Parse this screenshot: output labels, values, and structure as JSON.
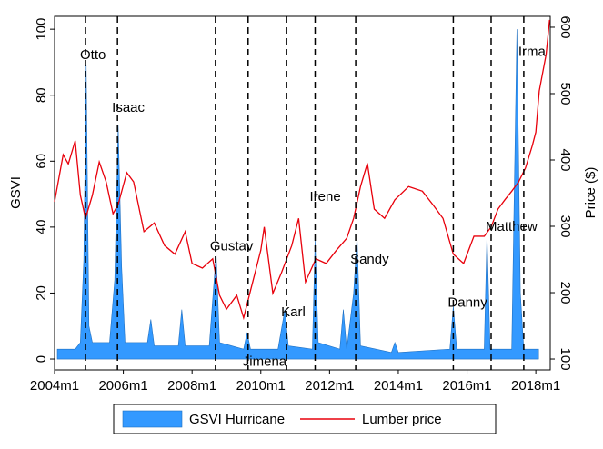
{
  "chart_data": {
    "type": "area-line",
    "y_label": "GSVI",
    "y2_label": "Price ($)",
    "xlim": [
      2004,
      2018.42
    ],
    "xticks": [
      {
        "value": 2004,
        "label": "2004m1"
      },
      {
        "value": 2006,
        "label": "2006m1"
      },
      {
        "value": 2008,
        "label": "2008m1"
      },
      {
        "value": 2010,
        "label": "2010m1"
      },
      {
        "value": 2012,
        "label": "2012m1"
      },
      {
        "value": 2014,
        "label": "2014m1"
      },
      {
        "value": 2016,
        "label": "2016m1"
      },
      {
        "value": 2018,
        "label": "2018m1"
      }
    ],
    "ylim": [
      -3.3,
      103.9
    ],
    "yticks": [
      0,
      20,
      40,
      60,
      80,
      100
    ],
    "y2lim": [
      83.6,
      616.4
    ],
    "y2ticks": [
      100,
      200,
      300,
      400,
      500,
      600
    ],
    "legend": "bottom",
    "series": [
      {
        "name": "GSVI Hurricane",
        "kind": "area",
        "color": "#3399ff",
        "axis": "y",
        "x": [
          2004.08,
          2004.6,
          2004.75,
          2004.85,
          2004.92,
          2005.0,
          2005.1,
          2005.6,
          2005.75,
          2005.85,
          2005.95,
          2006.05,
          2006.7,
          2006.8,
          2006.9,
          2007.6,
          2007.7,
          2007.8,
          2008.5,
          2008.6,
          2008.7,
          2008.8,
          2009.5,
          2009.6,
          2009.7,
          2010.5,
          2010.7,
          2010.8,
          2011.5,
          2011.58,
          2011.67,
          2012.3,
          2012.4,
          2012.5,
          2012.7,
          2012.8,
          2012.9,
          2013.8,
          2013.9,
          2014.0,
          2015.5,
          2015.6,
          2015.7,
          2016.5,
          2016.58,
          2016.67,
          2017.3,
          2017.45,
          2017.55,
          2017.65,
          2018.08
        ],
        "values": [
          3,
          3,
          5,
          30,
          89,
          10,
          5,
          5,
          24,
          71,
          28,
          5,
          5,
          12,
          4,
          4,
          15,
          4,
          4,
          18,
          32,
          5,
          3,
          8,
          3,
          3,
          15,
          4,
          3,
          36,
          5,
          3,
          15,
          3,
          20,
          37,
          4,
          2,
          5,
          2,
          3,
          16,
          3,
          3,
          38,
          3,
          3,
          100,
          20,
          3,
          3
        ]
      },
      {
        "name": "Lumber price",
        "kind": "line",
        "color": "#e8000b",
        "axis": "y2",
        "x": [
          2004.0,
          2004.25,
          2004.4,
          2004.6,
          2004.75,
          2004.9,
          2005.1,
          2005.3,
          2005.5,
          2005.7,
          2005.85,
          2006.1,
          2006.3,
          2006.6,
          2006.9,
          2007.2,
          2007.5,
          2007.8,
          2008.0,
          2008.3,
          2008.6,
          2008.8,
          2009.0,
          2009.3,
          2009.5,
          2009.7,
          2010.0,
          2010.1,
          2010.35,
          2010.6,
          2010.9,
          2011.1,
          2011.3,
          2011.6,
          2011.9,
          2012.2,
          2012.5,
          2012.7,
          2012.9,
          2013.1,
          2013.3,
          2013.6,
          2013.9,
          2014.3,
          2014.7,
          2015.0,
          2015.3,
          2015.6,
          2015.9,
          2016.2,
          2016.5,
          2016.7,
          2016.9,
          2017.1,
          2017.3,
          2017.5,
          2017.7,
          2017.9,
          2018.0,
          2018.1,
          2018.3,
          2018.4
        ],
        "values": [
          337,
          408,
          394,
          429,
          347,
          312,
          347,
          397,
          367,
          319,
          333,
          381,
          367,
          292,
          305,
          271,
          258,
          292,
          244,
          237,
          251,
          196,
          175,
          196,
          162,
          203,
          264,
          299,
          199,
          230,
          271,
          312,
          216,
          251,
          244,
          264,
          282,
          312,
          360,
          395,
          326,
          312,
          340,
          360,
          353,
          333,
          312,
          258,
          244,
          285,
          285,
          299,
          326,
          340,
          353,
          367,
          388,
          422,
          442,
          504,
          559,
          611
        ]
      }
    ],
    "annotations": [
      {
        "text": "Otto",
        "x": 2004.9,
        "y": 92
      },
      {
        "text": "Isaac",
        "x": 2005.83,
        "y": 76
      },
      {
        "text": "Gustav",
        "x": 2008.68,
        "y": 34
      },
      {
        "text": "Jimena",
        "x": 2009.63,
        "y": -1
      },
      {
        "text": "Karl",
        "x": 2010.75,
        "y": 14
      },
      {
        "text": "Irene",
        "x": 2011.58,
        "y": 49
      },
      {
        "text": "Sandy",
        "x": 2012.76,
        "y": 30
      },
      {
        "text": "Danny",
        "x": 2015.6,
        "y": 17
      },
      {
        "text": "Matthew",
        "x": 2016.7,
        "y": 40
      },
      {
        "text": "Irma",
        "x": 2017.65,
        "y": 93
      }
    ]
  }
}
